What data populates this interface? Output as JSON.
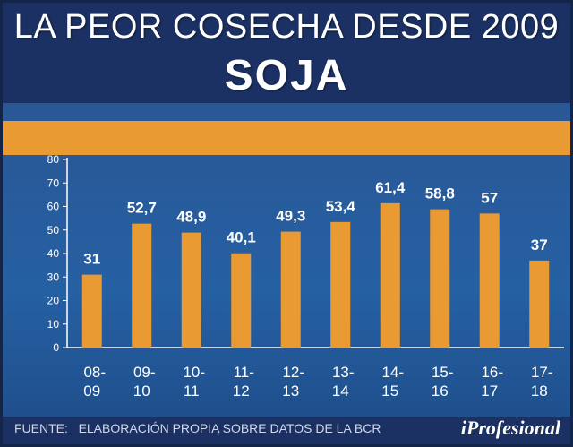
{
  "header": {
    "title_line1": "LA PEOR COSECHA DESDE 2009",
    "title_line2": "SOJA"
  },
  "footer": {
    "source_label": "FUENTE:",
    "source_text": "ELABORACIÓN PROPIA SOBRE DATOS DE LA BCR",
    "logo": "iProfesional"
  },
  "colors": {
    "bar": "#e99a33",
    "band": "#e99a33",
    "axis_text": "#ffffff",
    "background": "#2560a3"
  },
  "chart_data": {
    "type": "bar",
    "title": "LA PEOR COSECHA DESDE 2009 — SOJA",
    "categories": [
      [
        "08-",
        "09"
      ],
      [
        "09-",
        "10"
      ],
      [
        "10-",
        "11"
      ],
      [
        "11-",
        "12"
      ],
      [
        "12-",
        "13"
      ],
      [
        "13-",
        "14"
      ],
      [
        "14-",
        "15"
      ],
      [
        "15-",
        "16"
      ],
      [
        "16-",
        "17"
      ],
      [
        "17-",
        "18"
      ]
    ],
    "values": [
      31,
      52.7,
      48.9,
      40.1,
      49.3,
      53.4,
      61.4,
      58.8,
      57,
      37
    ],
    "value_labels": [
      "31",
      "52,7",
      "48,9",
      "40,1",
      "49,3",
      "53,4",
      "61,4",
      "58,8",
      "57",
      "37"
    ],
    "ylim": [
      0,
      80
    ],
    "yticks": [
      0,
      10,
      20,
      30,
      40,
      50,
      60,
      70,
      80
    ],
    "xlabel": "",
    "ylabel": "",
    "grid": false
  }
}
